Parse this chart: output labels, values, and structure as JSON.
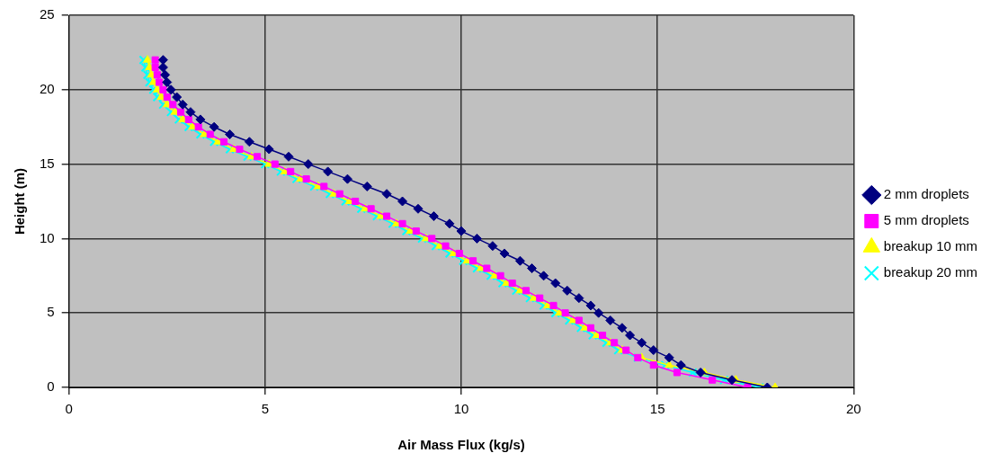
{
  "chart_data": {
    "type": "line",
    "xlabel": "Air Mass Flux (kg/s)",
    "ylabel": "Height (m)",
    "xlim": [
      0,
      20
    ],
    "xticks": [
      0,
      5,
      10,
      15,
      20
    ],
    "ylim": [
      0,
      25
    ],
    "yticks": [
      0,
      5,
      10,
      15,
      20,
      25
    ],
    "grid": true,
    "legend": "right",
    "series": [
      {
        "name": "2 mm droplets",
        "color": "#000080",
        "marker": "diamond",
        "x": [
          17.8,
          16.9,
          16.1,
          15.6,
          15.3,
          14.9,
          14.6,
          14.3,
          14.1,
          13.8,
          13.5,
          13.3,
          13.0,
          12.7,
          12.4,
          12.1,
          11.8,
          11.5,
          11.1,
          10.8,
          10.4,
          10.0,
          9.7,
          9.3,
          8.9,
          8.5,
          8.1,
          7.6,
          7.1,
          6.6,
          6.1,
          5.6,
          5.1,
          4.6,
          4.1,
          3.7,
          3.35,
          3.1,
          2.9,
          2.75,
          2.6,
          2.5,
          2.45,
          2.4,
          2.4
        ],
        "values": [
          0,
          0.5,
          1,
          1.5,
          2,
          2.5,
          3,
          3.5,
          4,
          4.5,
          5,
          5.5,
          6,
          6.5,
          7,
          7.5,
          8,
          8.5,
          9,
          9.5,
          10,
          10.5,
          11,
          11.5,
          12,
          12.5,
          13,
          13.5,
          14,
          14.5,
          15,
          15.5,
          16,
          16.5,
          17,
          17.5,
          18,
          18.5,
          19,
          19.5,
          20,
          20.5,
          21,
          21.5,
          22
        ]
      },
      {
        "name": "5 mm droplets",
        "color": "#ff00ff",
        "marker": "square",
        "x": [
          17.3,
          16.4,
          15.5,
          14.9,
          14.5,
          14.2,
          13.9,
          13.6,
          13.3,
          13.0,
          12.65,
          12.35,
          12.0,
          11.65,
          11.3,
          11.0,
          10.65,
          10.3,
          9.95,
          9.6,
          9.25,
          8.85,
          8.5,
          8.1,
          7.7,
          7.3,
          6.9,
          6.5,
          6.05,
          5.65,
          5.25,
          4.8,
          4.35,
          3.95,
          3.6,
          3.3,
          3.05,
          2.85,
          2.65,
          2.5,
          2.4,
          2.3,
          2.25,
          2.2,
          2.2
        ],
        "values": [
          0,
          0.5,
          1,
          1.5,
          2,
          2.5,
          3,
          3.5,
          4,
          4.5,
          5,
          5.5,
          6,
          6.5,
          7,
          7.5,
          8,
          8.5,
          9,
          9.5,
          10,
          10.5,
          11,
          11.5,
          12,
          12.5,
          13,
          13.5,
          14,
          14.5,
          15,
          15.5,
          16,
          16.5,
          17,
          17.5,
          18,
          18.5,
          19,
          19.5,
          20,
          20.5,
          21,
          21.5,
          22
        ]
      },
      {
        "name": "breakup 10 mm",
        "color": "#ffff00",
        "marker": "triangle",
        "x": [
          18.0,
          17.0,
          16.2,
          15.3,
          14.6,
          14.1,
          13.8,
          13.45,
          13.15,
          12.85,
          12.5,
          12.2,
          11.85,
          11.5,
          11.15,
          10.85,
          10.5,
          10.15,
          9.8,
          9.45,
          9.1,
          8.7,
          8.35,
          7.95,
          7.55,
          7.15,
          6.75,
          6.35,
          5.9,
          5.5,
          5.1,
          4.65,
          4.2,
          3.8,
          3.45,
          3.15,
          2.9,
          2.7,
          2.5,
          2.35,
          2.25,
          2.15,
          2.1,
          2.05,
          2.0
        ],
        "values": [
          0,
          0.5,
          1,
          1.5,
          2,
          2.5,
          3,
          3.5,
          4,
          4.5,
          5,
          5.5,
          6,
          6.5,
          7,
          7.5,
          8,
          8.5,
          9,
          9.5,
          10,
          10.5,
          11,
          11.5,
          12,
          12.5,
          13,
          13.5,
          14,
          14.5,
          15,
          15.5,
          16,
          16.5,
          17,
          17.5,
          18,
          18.5,
          19,
          19.5,
          20,
          20.5,
          21,
          21.5,
          22
        ]
      },
      {
        "name": "breakup 20 mm",
        "color": "#00ffff",
        "marker": "cross",
        "x": [
          17.6,
          16.7,
          15.9,
          15.2,
          14.5,
          14.0,
          13.7,
          13.35,
          13.05,
          12.75,
          12.4,
          12.1,
          11.75,
          11.4,
          11.05,
          10.75,
          10.4,
          10.05,
          9.7,
          9.35,
          9.0,
          8.6,
          8.25,
          7.85,
          7.45,
          7.05,
          6.65,
          6.25,
          5.8,
          5.4,
          5.0,
          4.55,
          4.1,
          3.7,
          3.35,
          3.05,
          2.8,
          2.6,
          2.4,
          2.25,
          2.15,
          2.05,
          2.0,
          1.95,
          1.9
        ],
        "values": [
          0,
          0.5,
          1,
          1.5,
          2,
          2.5,
          3,
          3.5,
          4,
          4.5,
          5,
          5.5,
          6,
          6.5,
          7,
          7.5,
          8,
          8.5,
          9,
          9.5,
          10,
          10.5,
          11,
          11.5,
          12,
          12.5,
          13,
          13.5,
          14,
          14.5,
          15,
          15.5,
          16,
          16.5,
          17,
          17.5,
          18,
          18.5,
          19,
          19.5,
          20,
          20.5,
          21,
          21.5,
          22
        ]
      }
    ]
  }
}
